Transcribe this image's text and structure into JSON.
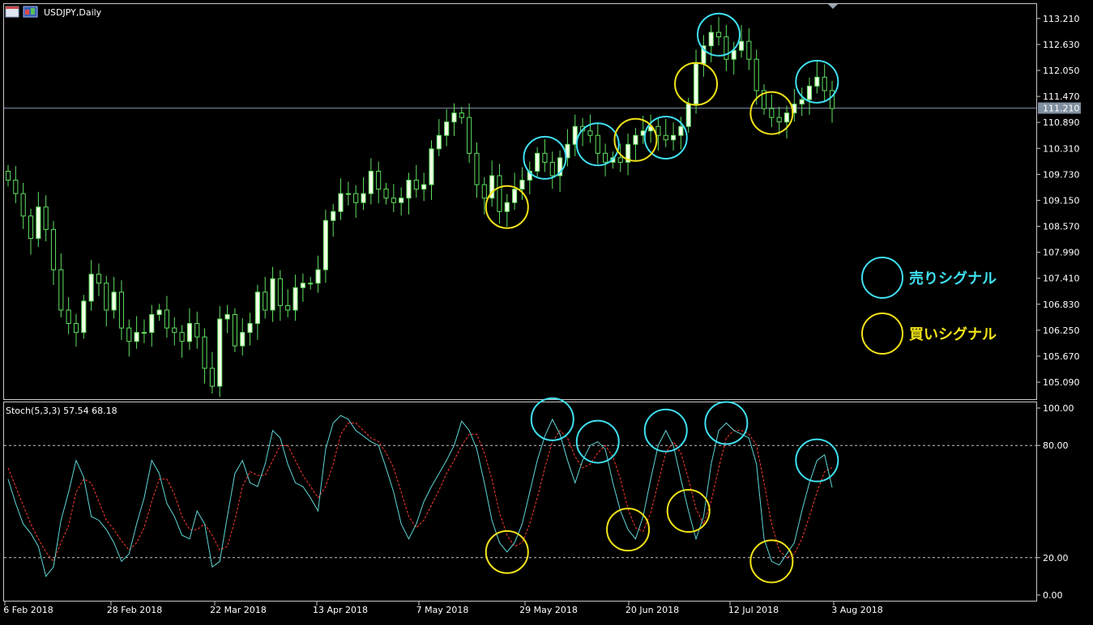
{
  "chart_data": [
    {
      "type": "candlestick",
      "title": "USDJPY,Daily",
      "symbol": "USDJPY",
      "timeframe": "Daily",
      "current_price": "111.210",
      "ylim": [
        104.75,
        113.45
      ],
      "y_ticks": [
        "113.210",
        "112.630",
        "112.050",
        "111.470",
        "110.890",
        "110.310",
        "109.730",
        "109.150",
        "108.570",
        "107.990",
        "107.410",
        "106.830",
        "106.250",
        "105.670",
        "105.090"
      ],
      "x_ticks": [
        "6 Feb 2018",
        "28 Feb 2018",
        "22 Mar 2018",
        "13 Apr 2018",
        "7 May 2018",
        "29 May 2018",
        "20 Jun 2018",
        "12 Jul 2018",
        "3 Aug 2018"
      ],
      "close": [
        109.6,
        109.3,
        108.8,
        108.3,
        109.0,
        108.5,
        107.6,
        106.7,
        106.4,
        106.2,
        106.9,
        107.5,
        107.3,
        106.7,
        107.1,
        106.3,
        106.0,
        106.2,
        106.2,
        106.6,
        106.7,
        106.3,
        106.2,
        106.0,
        106.4,
        106.1,
        105.4,
        105.0,
        106.5,
        106.6,
        105.9,
        106.2,
        106.4,
        107.1,
        106.7,
        107.4,
        106.8,
        106.7,
        107.2,
        107.3,
        107.3,
        107.6,
        108.7,
        108.9,
        109.3,
        109.3,
        109.1,
        109.3,
        109.8,
        109.4,
        109.2,
        109.1,
        109.2,
        109.6,
        109.4,
        109.5,
        110.3,
        110.6,
        110.9,
        111.1,
        111.0,
        110.2,
        109.5,
        109.2,
        109.7,
        108.9,
        109.1,
        109.4,
        109.6,
        109.8,
        110.2,
        110.0,
        109.7,
        110.1,
        110.4,
        110.8,
        110.7,
        110.6,
        110.2,
        110.0,
        110.1,
        110.0,
        110.4,
        110.6,
        110.7,
        110.8,
        110.6,
        110.5,
        110.6,
        110.8,
        111.3,
        112.2,
        112.6,
        112.9,
        112.8,
        112.3,
        112.5,
        112.7,
        112.3,
        111.6,
        111.2,
        111.0,
        110.9,
        111.1,
        111.3,
        111.4,
        111.7,
        111.9,
        111.6,
        111.2
      ],
      "stoch_open": [
        109.8,
        109.6,
        109.3,
        108.8,
        108.3,
        109.0,
        108.5,
        107.6,
        106.7,
        106.4,
        106.2,
        106.9,
        107.5,
        107.3,
        106.7,
        107.1,
        106.3,
        106.0,
        106.2,
        106.2,
        106.6,
        106.7,
        106.3,
        106.2,
        106.0,
        106.4,
        106.1,
        105.4,
        105.0,
        106.5,
        106.6,
        105.9,
        106.2,
        106.4,
        107.1,
        106.7,
        107.4,
        106.8,
        106.7,
        107.2,
        107.3,
        107.3,
        107.6,
        108.7,
        108.9,
        109.3,
        109.3,
        109.1,
        109.3,
        109.8,
        109.4,
        109.2,
        109.1,
        109.2,
        109.6,
        109.4,
        109.5,
        110.3,
        110.6,
        110.9,
        111.1,
        111.0,
        110.2,
        109.5,
        109.2,
        109.7,
        108.9,
        109.1,
        109.4,
        109.6,
        109.8,
        110.2,
        110.0,
        109.7,
        110.1,
        110.4,
        110.8,
        110.7,
        110.6,
        110.2,
        110.0,
        110.1,
        110.0,
        110.4,
        110.6,
        110.7,
        110.8,
        110.6,
        110.5,
        110.6,
        110.8,
        111.3,
        112.2,
        112.6,
        112.9,
        112.8,
        112.3,
        112.5,
        112.7,
        112.3,
        111.6,
        111.2,
        111.0,
        110.9,
        111.1,
        111.3,
        111.4,
        111.7,
        111.9,
        111.6
      ],
      "hl_range": 0.35,
      "stochastic": {
        "label": "Stoch(5,3,3) 57.54 68.18",
        "title": "Stoch(5,3,3)",
        "main_value": "57.54",
        "signal_value": "68.18",
        "ylim": [
          0,
          100
        ],
        "y_ticks": [
          "100.00",
          "80.00",
          "20.00",
          "0.00"
        ],
        "levels": [
          80,
          20
        ],
        "main_color": "#5fd7d7",
        "signal_color": "#ff3b30",
        "main": [
          62,
          49,
          38,
          33,
          26,
          10,
          15,
          40,
          55,
          72,
          63,
          42,
          40,
          35,
          28,
          18,
          22,
          38,
          52,
          72,
          65,
          49,
          42,
          32,
          30,
          45,
          38,
          15,
          18,
          42,
          65,
          72,
          60,
          58,
          70,
          88,
          84,
          70,
          60,
          58,
          52,
          45,
          78,
          92,
          96,
          94,
          88,
          85,
          82,
          80,
          68,
          55,
          38,
          30,
          38,
          50,
          58,
          65,
          72,
          80,
          93,
          88,
          78,
          60,
          40,
          28,
          23,
          28,
          38,
          55,
          72,
          85,
          94,
          86,
          72,
          60,
          72,
          80,
          82,
          78,
          60,
          45,
          35,
          30,
          42,
          62,
          80,
          88,
          80,
          62,
          45,
          30,
          42,
          70,
          88,
          92,
          88,
          86,
          84,
          70,
          30,
          18,
          16,
          22,
          28,
          45,
          60,
          72,
          75,
          57.54
        ],
        "signal": [
          68,
          58,
          48,
          38,
          30,
          23,
          18,
          28,
          37,
          55,
          62,
          60,
          50,
          40,
          35,
          29,
          24,
          28,
          36,
          50,
          62,
          62,
          54,
          42,
          35,
          35,
          38,
          32,
          24,
          26,
          40,
          58,
          66,
          64,
          64,
          72,
          80,
          80,
          72,
          64,
          58,
          52,
          58,
          70,
          86,
          92,
          92,
          88,
          84,
          82,
          76,
          68,
          55,
          42,
          36,
          40,
          48,
          56,
          65,
          72,
          80,
          86,
          86,
          76,
          62,
          44,
          32,
          26,
          28,
          38,
          52,
          68,
          82,
          88,
          84,
          74,
          68,
          70,
          76,
          80,
          74,
          62,
          46,
          36,
          34,
          44,
          60,
          76,
          82,
          76,
          62,
          46,
          38,
          50,
          68,
          84,
          88,
          88,
          86,
          80,
          60,
          38,
          24,
          20,
          22,
          30,
          42,
          55,
          66,
          68.18
        ]
      },
      "annotations": {
        "sell_signal_label": "売りシグナル",
        "buy_signal_label": "買いシグナル",
        "sell_color": "#3fe0f0",
        "buy_color": "#f2e418",
        "price_sell_idx": [
          71,
          78,
          87,
          94,
          107
        ],
        "price_buy_idx": [
          66,
          83,
          91,
          101
        ],
        "stoch_sell_idx": [
          72,
          78,
          87,
          95,
          107
        ],
        "stoch_buy_idx": [
          66,
          82,
          90,
          101
        ]
      },
      "colors": {
        "background": "#000000",
        "bull_body": "#f2ffe6",
        "bear_body": "#000000",
        "wick": "#5fe05f",
        "grid_text": "#ffffff",
        "price_line": "#7a8aa0",
        "price_label_bg": "#8090a0",
        "level_line": "#c8c8c8"
      }
    }
  ]
}
